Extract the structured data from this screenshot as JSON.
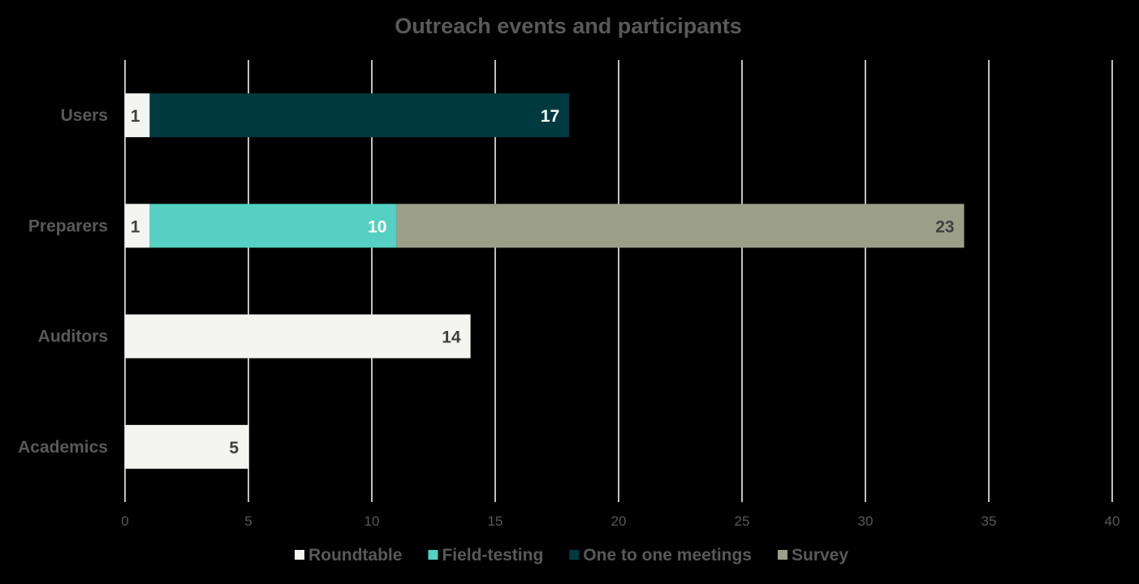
{
  "chart_data": {
    "type": "bar",
    "orientation": "horizontal",
    "stacked": true,
    "title": "Outreach events and participants",
    "categories": [
      "Users",
      "Preparers",
      "Auditors",
      "Academics"
    ],
    "series": [
      {
        "name": "Roundtable",
        "color": "#F4F5F0",
        "values": [
          1,
          1,
          14,
          5
        ],
        "label_color": "#404040"
      },
      {
        "name": "Field-testing",
        "color": "#55D0C2",
        "values": [
          0,
          10,
          0,
          0
        ],
        "label_color": "#FFFFFF"
      },
      {
        "name": "One to one meetings",
        "color": "#003A40",
        "values": [
          17,
          0,
          0,
          0
        ],
        "label_color": "#FFFFFF"
      },
      {
        "name": "Survey",
        "color": "#9C9F88",
        "values": [
          0,
          23,
          0,
          0
        ],
        "label_color": "#404040"
      }
    ],
    "xlim": [
      0,
      40
    ],
    "xticks": [
      0,
      5,
      10,
      15,
      20,
      25,
      30,
      35,
      40
    ],
    "xlabel": "",
    "ylabel": "",
    "grid": true,
    "legend": "bottom",
    "colors": {
      "background": "#000000",
      "gridline": "#FFFFFF",
      "text": "#595959"
    }
  }
}
